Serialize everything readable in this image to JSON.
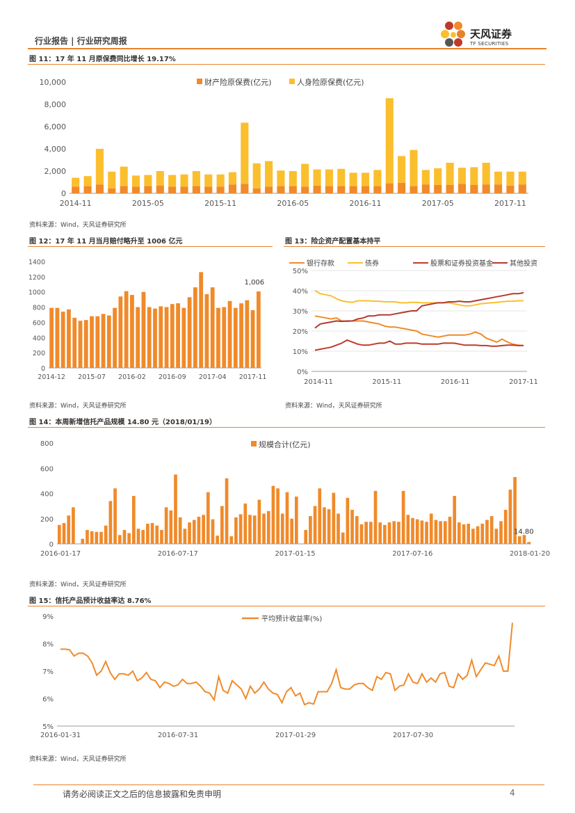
{
  "header": {
    "left": "行业报告 | 行业研究周报",
    "brand_cn": "天风证券",
    "brand_en": "TF SECURITIES"
  },
  "footer": {
    "disclaimer": "请务必阅读正文之后的信息披露和免责申明",
    "page": "4"
  },
  "source_note": "资料来源：Wind，天风证券研究所",
  "colors": {
    "accent": "#e8822a",
    "orange": "#f08a2a",
    "yellow": "#fbbf2e",
    "red": "#c0392b",
    "gold": "#f5b731"
  },
  "figures": {
    "fig11": {
      "title": "图 11：17 年 11 月原保费同比增长 19.17%"
    },
    "fig12": {
      "title": "图 12：17 年 11 月当月赔付略升至 1006 亿元"
    },
    "fig13": {
      "title": "图 13：险企资产配置基本持平"
    },
    "fig14": {
      "title": "图 14：本周新增信托产品规模 14.80 元（2018/01/19）"
    },
    "fig15": {
      "title": "图 15：信托产品预计收益率达 8.76%"
    }
  },
  "chart_data": [
    {
      "id": "fig11",
      "type": "bar",
      "stacked": true,
      "x_tick_labels": [
        "2014-11",
        "2015-05",
        "2015-11",
        "2016-05",
        "2016-11",
        "2017-05",
        "2017-11"
      ],
      "yticks": [
        "0",
        "2,000",
        "4,000",
        "6,000",
        "8,000",
        "10,000"
      ],
      "ylim": [
        0,
        10000
      ],
      "series": [
        {
          "name": "财产险原保费(亿元)",
          "color": "#f08a2a",
          "values": [
            600,
            650,
            800,
            450,
            650,
            600,
            650,
            700,
            600,
            600,
            650,
            600,
            600,
            800,
            850,
            450,
            600,
            650,
            650,
            600,
            700,
            650,
            650,
            650,
            650,
            650,
            900,
            950,
            650,
            800,
            750,
            750,
            850,
            750,
            800,
            800,
            700,
            800
          ]
        },
        {
          "name": "人身险原保费(亿元)",
          "color": "#fbbf2e",
          "values": [
            800,
            900,
            3200,
            1500,
            1750,
            1000,
            1000,
            1300,
            1050,
            1100,
            1350,
            1100,
            1100,
            1100,
            5500,
            2250,
            2300,
            1400,
            1350,
            2050,
            1450,
            1500,
            1550,
            1200,
            1200,
            1450,
            7650,
            2400,
            3250,
            1300,
            1500,
            2000,
            1450,
            1600,
            1950,
            1150,
            1250,
            1150
          ]
        }
      ]
    },
    {
      "id": "fig12",
      "type": "bar",
      "x_tick_labels": [
        "2014-12",
        "2015-07",
        "2016-02",
        "2016-09",
        "2017-04",
        "2017-11"
      ],
      "yticks": [
        "0",
        "200",
        "400",
        "600",
        "800",
        "1000",
        "1200",
        "1400"
      ],
      "ylim": [
        0,
        1400
      ],
      "data_label": "1,006",
      "series": [
        {
          "name": "当月赔付",
          "color": "#f08a2a",
          "values": [
            790,
            790,
            740,
            770,
            660,
            620,
            630,
            680,
            680,
            710,
            690,
            790,
            940,
            1010,
            960,
            800,
            1000,
            800,
            780,
            810,
            800,
            840,
            850,
            790,
            930,
            1060,
            1260,
            970,
            1060,
            790,
            800,
            880,
            790,
            850,
            890,
            760,
            1006
          ]
        }
      ]
    },
    {
      "id": "fig13",
      "type": "line",
      "x_tick_labels": [
        "2014-11",
        "2015-11",
        "2016-11",
        "2017-11"
      ],
      "yticks": [
        "0%",
        "10%",
        "20%",
        "30%",
        "40%",
        "50%"
      ],
      "ylim": [
        0,
        50
      ],
      "series": [
        {
          "name": "银行存款",
          "color": "#f08a2a",
          "values": [
            27.5,
            27,
            26.5,
            26,
            26.5,
            25,
            24.8,
            25,
            25,
            25,
            24.5,
            24,
            23.5,
            22.5,
            22,
            22,
            21.5,
            21,
            20.5,
            20,
            18.5,
            18,
            17.5,
            17,
            17.5,
            18,
            18,
            18,
            18,
            18.5,
            19.5,
            18.5,
            16.5,
            15.5,
            14.5,
            16,
            14.5,
            13.5,
            13,
            12.8
          ]
        },
        {
          "name": "债券",
          "color": "#fbbf2e",
          "values": [
            40,
            38.5,
            38,
            37.5,
            36,
            35,
            34.5,
            34.2,
            35,
            35,
            35,
            34.8,
            34.8,
            34.5,
            34.5,
            34.5,
            34,
            34,
            34.2,
            34.2,
            34,
            34,
            34,
            34,
            34,
            34,
            33.5,
            33,
            32.5,
            32.5,
            33,
            33.5,
            33.8,
            34,
            34.2,
            34.5,
            34.8,
            34.8,
            35,
            35
          ]
        },
        {
          "name": "股票和证券投资基金",
          "color": "#c0392b",
          "values": [
            10.5,
            11,
            11.5,
            12,
            13,
            14,
            15.5,
            14.5,
            13.5,
            13,
            13,
            13.5,
            14,
            14,
            15,
            13.5,
            13.5,
            14,
            14,
            14,
            13.5,
            13.5,
            13.5,
            13.5,
            14,
            14,
            14,
            13.5,
            13,
            13,
            13,
            12.8,
            12.8,
            12.5,
            12.5,
            12.8,
            13,
            13,
            12.8,
            12.8
          ]
        },
        {
          "name": "其他投资",
          "color": "#b03a2e",
          "values": [
            21.5,
            23.5,
            24,
            24.5,
            25,
            24.8,
            25,
            25,
            26,
            26.5,
            27.5,
            27.5,
            28,
            28,
            28,
            28.5,
            29,
            29.5,
            30,
            30,
            32.5,
            33,
            33.5,
            34,
            34,
            34.5,
            34.5,
            34.8,
            34.5,
            34.5,
            35,
            35.5,
            36,
            36.5,
            37,
            37.5,
            38,
            38.5,
            38.5,
            39
          ]
        }
      ]
    },
    {
      "id": "fig14",
      "type": "bar",
      "x_tick_labels": [
        "2016-01-17",
        "2016-07-17",
        "2017-01-15",
        "2017-07-16",
        "2018-01-20"
      ],
      "yticks": [
        "0",
        "200",
        "400",
        "600",
        "800"
      ],
      "ylim": [
        0,
        800
      ],
      "data_label": "14.80",
      "series": [
        {
          "name": "规模合计(亿元)",
          "color": "#f08a2a",
          "values": [
            150,
            165,
            225,
            290,
            0,
            40,
            110,
            100,
            95,
            95,
            145,
            340,
            440,
            70,
            110,
            85,
            380,
            120,
            110,
            160,
            165,
            145,
            110,
            290,
            265,
            550,
            210,
            120,
            170,
            190,
            215,
            230,
            410,
            195,
            65,
            300,
            520,
            60,
            210,
            235,
            320,
            230,
            225,
            350,
            240,
            260,
            460,
            440,
            240,
            410,
            200,
            375,
            0,
            110,
            220,
            300,
            440,
            290,
            275,
            405,
            240,
            90,
            365,
            270,
            220,
            155,
            175,
            175,
            420,
            170,
            150,
            170,
            180,
            175,
            420,
            230,
            205,
            195,
            185,
            175,
            240,
            190,
            180,
            180,
            215,
            380,
            170,
            155,
            160,
            120,
            140,
            160,
            190,
            220,
            120,
            180,
            270,
            430,
            530,
            60,
            70,
            14.8
          ]
        }
      ]
    },
    {
      "id": "fig15",
      "type": "line",
      "x_tick_labels": [
        "2016-01-31",
        "2016-07-31",
        "2017-01-29",
        "2017-07-30"
      ],
      "yticks": [
        "5%",
        "6%",
        "7%",
        "8%",
        "9%"
      ],
      "ylim": [
        5,
        9
      ],
      "series": [
        {
          "name": "平均预计收益率(%)",
          "color": "#f08a2a",
          "values": [
            7.8,
            7.8,
            7.78,
            7.55,
            7.65,
            7.65,
            7.55,
            7.3,
            6.85,
            7.0,
            7.35,
            6.95,
            6.7,
            6.9,
            6.9,
            6.85,
            7.0,
            6.65,
            6.75,
            6.95,
            6.7,
            6.65,
            6.4,
            6.6,
            6.55,
            6.45,
            6.5,
            6.7,
            6.55,
            6.55,
            6.6,
            6.45,
            6.25,
            6.2,
            5.95,
            6.8,
            6.3,
            6.2,
            6.65,
            6.5,
            6.35,
            6.0,
            6.45,
            6.2,
            6.35,
            6.6,
            6.35,
            6.2,
            6.15,
            5.85,
            6.25,
            6.4,
            6.1,
            6.2,
            5.78,
            5.85,
            5.8,
            6.25,
            6.25,
            6.25,
            6.55,
            7.05,
            6.4,
            6.35,
            6.35,
            6.5,
            6.55,
            6.55,
            6.4,
            6.3,
            6.8,
            6.7,
            6.95,
            6.9,
            6.3,
            6.45,
            6.5,
            6.9,
            6.6,
            6.55,
            6.9,
            6.6,
            6.75,
            6.6,
            6.9,
            6.95,
            6.45,
            6.4,
            6.9,
            6.7,
            6.85,
            7.4,
            6.8,
            7.05,
            7.3,
            7.25,
            7.2,
            7.55,
            7.0,
            7.0,
            8.76
          ]
        }
      ]
    }
  ]
}
